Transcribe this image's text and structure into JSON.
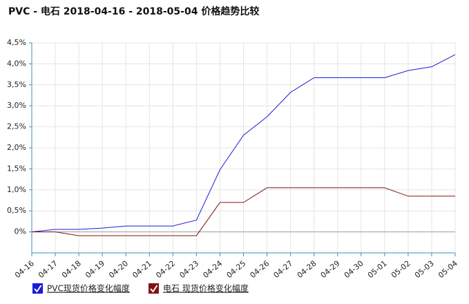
{
  "chart_data": {
    "type": "line",
    "title": "PVC - 电石 2018-04-16 - 2018-05-04 价格趋势比较",
    "categories": [
      "04-16",
      "04-17",
      "04-18",
      "04-19",
      "04-20",
      "04-21",
      "04-22",
      "04-23",
      "04-24",
      "04-25",
      "04-26",
      "04-27",
      "04-28",
      "04-29",
      "04-30",
      "05-01",
      "05-02",
      "05-03",
      "05-04"
    ],
    "series": [
      {
        "name": "PVC现货价格变化幅度",
        "color": "#1a1adb",
        "values": [
          0,
          0.06,
          0.06,
          0.09,
          0.14,
          0.14,
          0.14,
          0.28,
          1.48,
          2.3,
          2.74,
          3.32,
          3.67,
          3.67,
          3.67,
          3.67,
          3.84,
          3.93,
          4.22
        ]
      },
      {
        "name": "电石 现货价格变化幅度",
        "color": "#7f1414",
        "values": [
          0,
          0,
          -0.09,
          -0.09,
          -0.09,
          -0.09,
          -0.09,
          -0.09,
          0.7,
          0.7,
          1.05,
          1.05,
          1.05,
          1.05,
          1.05,
          1.05,
          0.85,
          0.85,
          0.85
        ]
      }
    ],
    "ylim": [
      -0.5,
      4.5
    ],
    "yticks": [
      {
        "value": 0,
        "label": "0%"
      },
      {
        "value": 0.5,
        "label": "0,5%"
      },
      {
        "value": 1,
        "label": "1,0%"
      },
      {
        "value": 1.5,
        "label": "1,5%"
      },
      {
        "value": 2,
        "label": "2,0%"
      },
      {
        "value": 2.5,
        "label": "2,5%"
      },
      {
        "value": 3,
        "label": "3,0%"
      },
      {
        "value": 3.5,
        "label": "3,5%"
      },
      {
        "value": 4,
        "label": "4,0%"
      },
      {
        "value": 4.5,
        "label": "4,5%"
      }
    ],
    "grid": true
  }
}
